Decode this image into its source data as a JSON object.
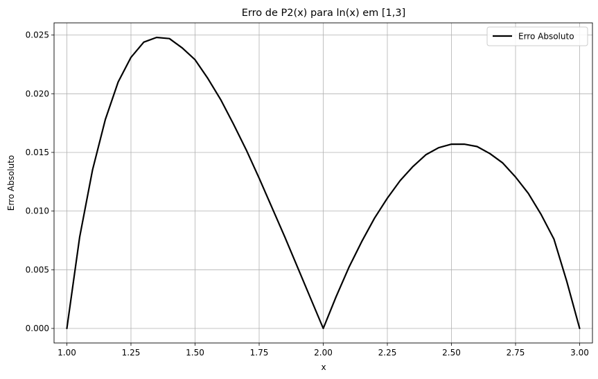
{
  "chart_data": {
    "type": "line",
    "title": "Erro de P2(x) para ln(x) em [1,3]",
    "xlabel": "x",
    "ylabel": "Erro Absoluto",
    "xlim": [
      0.95,
      3.05
    ],
    "ylim": [
      -0.00124,
      0.02604
    ],
    "x_ticks": [
      "1.00",
      "1.25",
      "1.50",
      "1.75",
      "2.00",
      "2.25",
      "2.50",
      "2.75",
      "3.00"
    ],
    "y_ticks": [
      "0.000",
      "0.005",
      "0.010",
      "0.015",
      "0.020",
      "0.025"
    ],
    "grid": true,
    "legend_position": "top-right",
    "series": [
      {
        "name": "Erro Absoluto",
        "color": "#000000",
        "x": [
          1.0,
          1.05,
          1.1,
          1.15,
          1.2,
          1.25,
          1.3,
          1.35,
          1.4,
          1.45,
          1.5,
          1.55,
          1.6,
          1.65,
          1.7,
          1.75,
          1.8,
          1.85,
          1.9,
          1.95,
          2.0,
          2.05,
          2.1,
          2.15,
          2.2,
          2.25,
          2.3,
          2.35,
          2.4,
          2.45,
          2.5,
          2.55,
          2.6,
          2.65,
          2.7,
          2.75,
          2.8,
          2.85,
          2.9,
          2.95,
          3.0
        ],
        "y": [
          0.0,
          0.0078,
          0.0135,
          0.0178,
          0.021,
          0.0231,
          0.0244,
          0.0248,
          0.0247,
          0.0239,
          0.0229,
          0.0213,
          0.0195,
          0.0174,
          0.0152,
          0.0128,
          0.0103,
          0.0078,
          0.0052,
          0.0026,
          0.0,
          0.0027,
          0.0052,
          0.0074,
          0.0094,
          0.0111,
          0.0126,
          0.0138,
          0.0148,
          0.0154,
          0.0157,
          0.0157,
          0.0155,
          0.0149,
          0.0141,
          0.0129,
          0.0115,
          0.0097,
          0.0076,
          0.004,
          0.0
        ]
      }
    ]
  }
}
